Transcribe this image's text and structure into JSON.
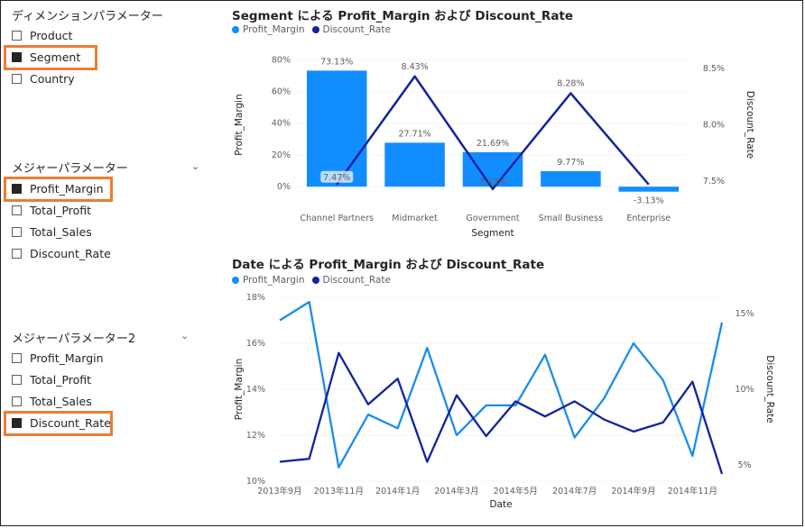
{
  "slicer_dimension": {
    "title": "ディメンションパラメーター",
    "options": [
      {
        "label": "Product",
        "checked": false
      },
      {
        "label": "Segment",
        "checked": true
      },
      {
        "label": "Country",
        "checked": false
      }
    ]
  },
  "slicer_measure1": {
    "title": "メジャーパラメーター",
    "options": [
      {
        "label": "Profit_Margin",
        "checked": true
      },
      {
        "label": "Total_Profit",
        "checked": false
      },
      {
        "label": "Total_Sales",
        "checked": false
      },
      {
        "label": "Discount_Rate",
        "checked": false
      }
    ]
  },
  "slicer_measure2": {
    "title": "メジャーパラメーター2",
    "options": [
      {
        "label": "Profit_Margin",
        "checked": false
      },
      {
        "label": "Total_Profit",
        "checked": false
      },
      {
        "label": "Total_Sales",
        "checked": false
      },
      {
        "label": "Discount_Rate",
        "checked": true
      }
    ]
  },
  "colors": {
    "accent": "#ed7d31",
    "series1": "#118dff",
    "series2": "#12239e",
    "line1": "#1a8dee",
    "axis_text": "#605e5c"
  },
  "chart_data": [
    {
      "type": "bar",
      "title": "Segment による Profit_Margin および Discount_Rate",
      "legend": [
        "Profit_Margin",
        "Discount_Rate"
      ],
      "xlabel": "Segment",
      "ylabel": "Profit_Margin",
      "y2label": "Discount_Rate",
      "categories": [
        "Channel Partners",
        "Midmarket",
        "Government",
        "Small Business",
        "Enterprise"
      ],
      "bar_values": [
        73.13,
        27.71,
        21.69,
        9.77,
        -3.13
      ],
      "bar_labels": [
        "73.13%",
        "27.71%",
        "21.69%",
        "9.77%",
        "-3.13%"
      ],
      "line_values": [
        7.47,
        8.43,
        7.43,
        8.28,
        7.47
      ],
      "line_labels": [
        "7.47%",
        "8.43%",
        "7.43%",
        "8.28%",
        ""
      ],
      "yticks": [
        "0%",
        "20%",
        "40%",
        "60%",
        "80%"
      ],
      "ytick_values": [
        0,
        20,
        40,
        60,
        80
      ],
      "y2ticks": [
        "7.5%",
        "8.0%",
        "8.5%"
      ],
      "y2tick_values": [
        7.5,
        8.0,
        8.5
      ],
      "ylim": [
        -5,
        83
      ],
      "y2lim": [
        7.38,
        8.62
      ]
    },
    {
      "type": "line",
      "title": "Date による Profit_Margin および Discount_Rate",
      "legend": [
        "Profit_Margin",
        "Discount_Rate"
      ],
      "xlabel": "Date",
      "ylabel": "Profit_Margin",
      "y2label": "Discount_Rate",
      "x": [
        "2013-09",
        "2013-10",
        "2013-11",
        "2013-12",
        "2014-01",
        "2014-02",
        "2014-03",
        "2014-04",
        "2014-05",
        "2014-06",
        "2014-07",
        "2014-08",
        "2014-09",
        "2014-10",
        "2014-11",
        "2014-12"
      ],
      "xticks": [
        "2013年9月",
        "2013年11月",
        "2014年1月",
        "2014年3月",
        "2014年5月",
        "2014年7月",
        "2014年9月",
        "2014年11月"
      ],
      "xtick_index": [
        0,
        2,
        4,
        6,
        8,
        10,
        12,
        14
      ],
      "profit_margin": [
        17.0,
        17.8,
        10.6,
        12.9,
        12.3,
        15.8,
        12.0,
        13.3,
        13.3,
        15.5,
        11.9,
        13.6,
        16.0,
        14.4,
        11.1,
        16.9
      ],
      "discount_rate": [
        5.2,
        5.4,
        12.4,
        9.0,
        10.7,
        5.2,
        9.6,
        6.9,
        9.2,
        8.2,
        9.2,
        8.0,
        7.2,
        7.8,
        10.5,
        4.4
      ],
      "yticks": [
        "10%",
        "12%",
        "14%",
        "16%",
        "18%"
      ],
      "ytick_values": [
        10,
        12,
        14,
        16,
        18
      ],
      "y2ticks": [
        "5%",
        "10%",
        "15%"
      ],
      "y2tick_values": [
        5,
        10,
        15
      ],
      "ylim": [
        10,
        18
      ],
      "y2lim": [
        3.92,
        16.08
      ]
    }
  ]
}
